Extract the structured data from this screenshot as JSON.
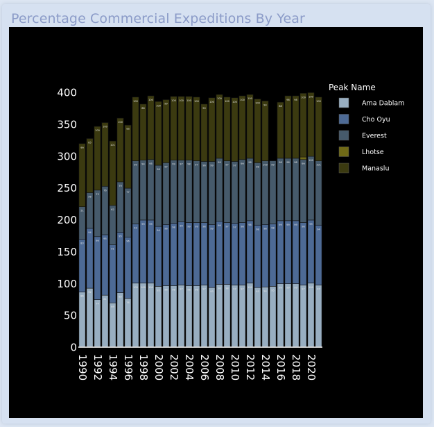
{
  "page": {
    "title": "Percentage Commercial Expeditions By Year"
  },
  "chart_data": {
    "type": "bar",
    "stacked": true,
    "title": "",
    "xlabel": "",
    "ylabel": "",
    "ylim": [
      0,
      420
    ],
    "yticks": [
      0,
      50,
      100,
      150,
      200,
      250,
      300,
      350,
      400
    ],
    "xtick_labels": [
      "1990",
      "1992",
      "1994",
      "1996",
      "1998",
      "2000",
      "2002",
      "2004",
      "2006",
      "2008",
      "2010",
      "2012",
      "2014",
      "2016",
      "2018",
      "2020"
    ],
    "legend_title": "Peak Name",
    "legend_position": "top-right",
    "categories": [
      1990,
      1991,
      1992,
      1993,
      1994,
      1995,
      1996,
      1997,
      1998,
      1999,
      2000,
      2001,
      2002,
      2003,
      2004,
      2005,
      2006,
      2007,
      2008,
      2009,
      2010,
      2011,
      2012,
      2013,
      2014,
      2015,
      2016,
      2017,
      2018,
      2019,
      2020,
      2021
    ],
    "series": [
      {
        "name": "Ama Dablam",
        "color": "#98aec1",
        "values": [
          86,
          92,
          74,
          81,
          69,
          85,
          76,
          100,
          100,
          100,
          95,
          96,
          96,
          97,
          96,
          96,
          97,
          93,
          98,
          98,
          97,
          97,
          100,
          93,
          94,
          95,
          99,
          99,
          99,
          97,
          100,
          97
        ]
      },
      {
        "name": "Cho Oyu",
        "color": "#4d6a95",
        "values": [
          83,
          94,
          99,
          95,
          91,
          95,
          96,
          93,
          99,
          99,
          94,
          96,
          98,
          99,
          99,
          99,
          98,
          99,
          99,
          97,
          97,
          98,
          98,
          98,
          98,
          98,
          99,
          99,
          99,
          98,
          99,
          94
        ]
      },
      {
        "name": "Everest",
        "color": "#465a6b",
        "values": [
          51,
          56,
          73,
          76,
          62,
          79,
          77,
          99,
          94,
          95,
          96,
          97,
          99,
          97,
          98,
          97,
          96,
          99,
          99,
          97,
          97,
          99,
          98,
          98,
          100,
          99,
          98,
          98,
          98,
          99,
          100,
          101
        ]
      },
      {
        "name": "Lhotse",
        "color": "#706a17",
        "values": [
          0,
          0,
          0,
          0,
          0,
          0,
          0,
          0,
          0,
          0,
          0,
          0,
          0,
          0,
          0,
          0,
          0,
          0,
          0,
          0,
          0,
          0,
          0,
          0,
          0,
          0,
          0,
          0,
          0,
          4,
          0,
          0
        ]
      },
      {
        "name": "Manaslu",
        "color": "#3b3a10",
        "values": [
          99,
          85,
          100,
          100,
          101,
          100,
          99,
          100,
          88,
          100,
          100,
          99,
          100,
          100,
          100,
          100,
          90,
          100,
          100,
          100,
          100,
          100,
          100,
          100,
          94,
          0,
          88,
          98,
          98,
          100,
          100,
          100
        ]
      }
    ]
  }
}
